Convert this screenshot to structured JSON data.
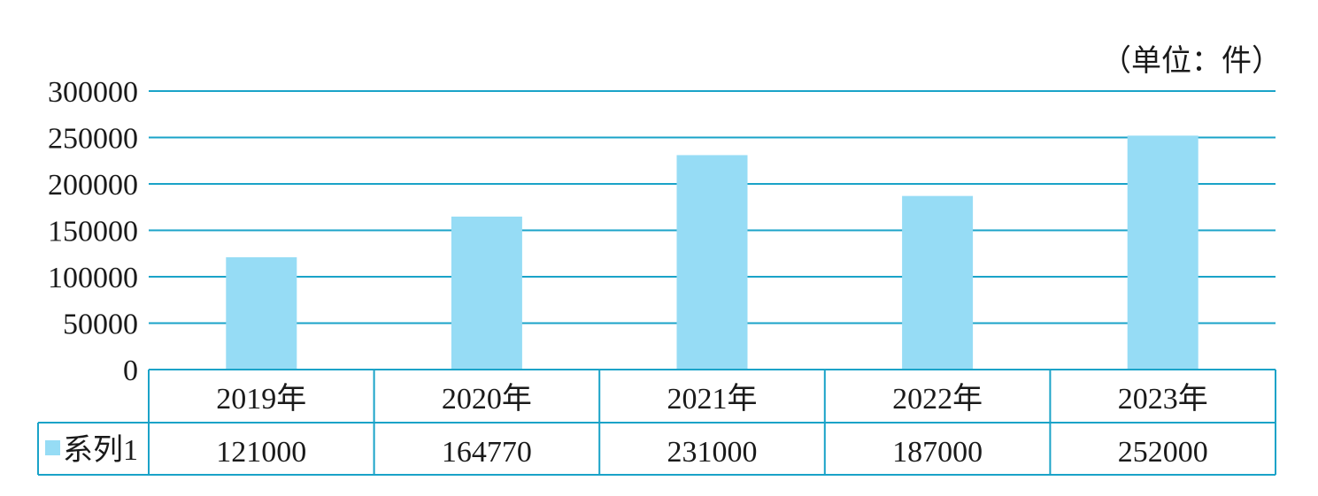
{
  "chart_data": {
    "type": "bar",
    "unit_label": "（单位：件）",
    "categories": [
      "2019年",
      "2020年",
      "2021年",
      "2022年",
      "2023年"
    ],
    "series": [
      {
        "name": "系列1",
        "values": [
          121000,
          164770,
          231000,
          187000,
          252000
        ]
      }
    ],
    "table_values": [
      "121000",
      "164770",
      "231000",
      "187000",
      "252000"
    ],
    "y_ticks": [
      "0",
      "50000",
      "100000",
      "150000",
      "200000",
      "250000",
      "300000"
    ],
    "ylim": [
      0,
      300000
    ],
    "grid": true,
    "data_table": true,
    "legend": "in data table",
    "colors": {
      "bar": "#96dcf5",
      "grid": "#1aa3c8",
      "table_border": "#1aa3c8",
      "text": "#1a1a1a"
    }
  }
}
